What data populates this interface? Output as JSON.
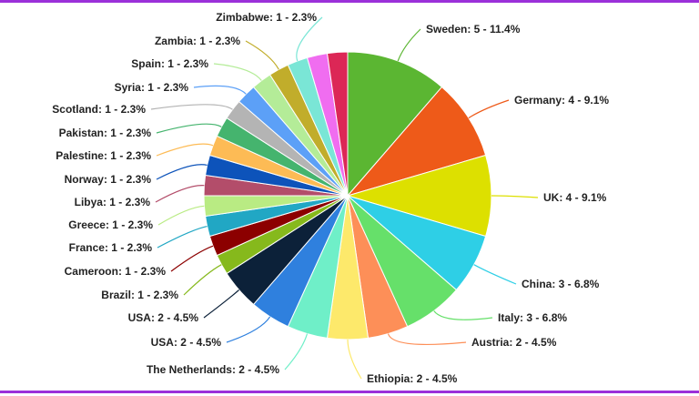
{
  "chart_data": {
    "type": "pie",
    "title": "",
    "slices": [
      {
        "label": "Sweden: 5 - 11.4%",
        "name": "Sweden",
        "value": 5,
        "percent": 11.4,
        "color": "#5bb632"
      },
      {
        "label": "Germany: 4 - 9.1%",
        "name": "Germany",
        "value": 4,
        "percent": 9.1,
        "color": "#ee5a19"
      },
      {
        "label": "UK: 4 - 9.1%",
        "name": "UK",
        "value": 4,
        "percent": 9.1,
        "color": "#dde000"
      },
      {
        "label": "China: 3 - 6.8%",
        "name": "China",
        "value": 3,
        "percent": 6.8,
        "color": "#2ecfe6"
      },
      {
        "label": "Italy: 3 - 6.8%",
        "name": "Italy",
        "value": 3,
        "percent": 6.8,
        "color": "#66e06a"
      },
      {
        "label": "Austria: 2 - 4.5%",
        "name": "Austria",
        "value": 2,
        "percent": 4.5,
        "color": "#fd8f58"
      },
      {
        "label": "Ethiopia: 2 - 4.5%",
        "name": "Ethiopia",
        "value": 2,
        "percent": 4.5,
        "color": "#fde96b"
      },
      {
        "label": "The Netherlands: 2 - 4.5%",
        "name": "The Netherlands",
        "value": 2,
        "percent": 4.5,
        "color": "#6fefc8"
      },
      {
        "label": "USA: 2 - 4.5%",
        "name": "USA",
        "value": 2,
        "percent": 4.5,
        "color": "#2f80de"
      },
      {
        "label": "USA: 2 - 4.5%",
        "name": "USA",
        "value": 2,
        "percent": 4.5,
        "color": "#0c2139"
      },
      {
        "label": "Brazil: 1 - 2.3%",
        "name": "Brazil",
        "value": 1,
        "percent": 2.3,
        "color": "#86b91c"
      },
      {
        "label": "Cameroon: 1 - 2.3%",
        "name": "Cameroon",
        "value": 1,
        "percent": 2.3,
        "color": "#8c0000"
      },
      {
        "label": "France: 1 - 2.3%",
        "name": "France",
        "value": 1,
        "percent": 2.3,
        "color": "#21a7c4"
      },
      {
        "label": "Greece: 1 - 2.3%",
        "name": "Greece",
        "value": 1,
        "percent": 2.3,
        "color": "#b9eb83"
      },
      {
        "label": "Libya: 1 - 2.3%",
        "name": "Libya",
        "value": 1,
        "percent": 2.3,
        "color": "#b34d6a"
      },
      {
        "label": "Norway: 1 - 2.3%",
        "name": "Norway",
        "value": 1,
        "percent": 2.3,
        "color": "#0d53ba"
      },
      {
        "label": "Palestine: 1 - 2.3%",
        "name": "Palestine",
        "value": 1,
        "percent": 2.3,
        "color": "#fdbb55"
      },
      {
        "label": "Pakistan: 1 - 2.3%",
        "name": "Pakistan",
        "value": 1,
        "percent": 2.3,
        "color": "#45b46e"
      },
      {
        "label": "Scotland: 1 - 2.3%",
        "name": "Scotland",
        "value": 1,
        "percent": 2.3,
        "color": "#b4b4b4"
      },
      {
        "label": "Syria: 1 - 2.3%",
        "name": "Syria",
        "value": 1,
        "percent": 2.3,
        "color": "#5ca0f7"
      },
      {
        "label": "Spain: 1 - 2.3%",
        "name": "Spain",
        "value": 1,
        "percent": 2.3,
        "color": "#b4ec98"
      },
      {
        "label": "Zambia: 1 - 2.3%",
        "name": "Zambia",
        "value": 1,
        "percent": 2.3,
        "color": "#c1ad2b"
      },
      {
        "label": "Zimbabwe: 1 - 2.3%",
        "name": "Zimbabwe",
        "value": 1,
        "percent": 2.3,
        "color": "#7ae6d6"
      },
      {
        "label": "",
        "name": "",
        "value": 1,
        "percent": 2.3,
        "color": "#f06df0"
      },
      {
        "label": "",
        "name": "",
        "value": 1,
        "percent": 2.3,
        "color": "#dc2756"
      }
    ],
    "total": 44,
    "legend": "none",
    "frame_color": "#9b30d9"
  }
}
